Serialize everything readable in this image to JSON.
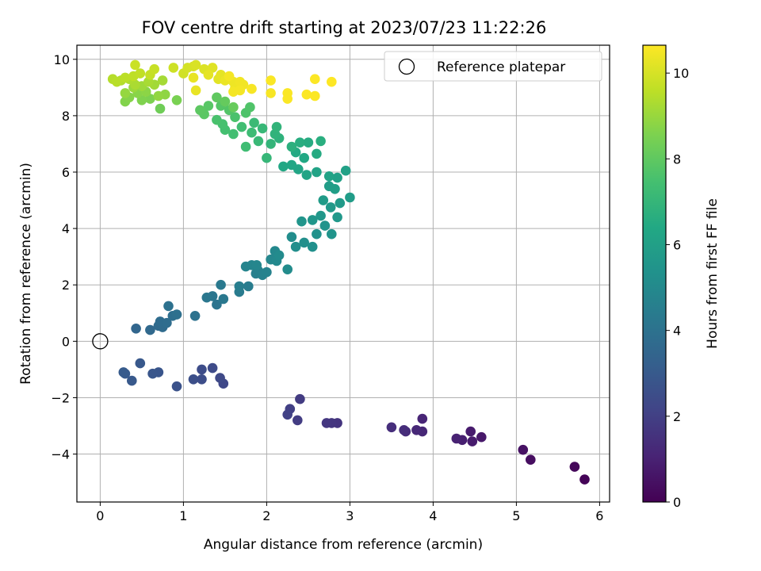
{
  "chart_data": {
    "type": "scatter",
    "title": "FOV centre drift starting at 2023/07/23 11:22:26",
    "xlabel": "Angular distance from reference (arcmin)",
    "ylabel": "Rotation from reference (arcmin)",
    "xlim": [
      -0.28,
      6.12
    ],
    "ylim": [
      -5.7,
      10.5
    ],
    "xticks": [
      0,
      1,
      2,
      3,
      4,
      5,
      6
    ],
    "yticks": [
      -4,
      -2,
      0,
      2,
      4,
      6,
      8,
      10
    ],
    "grid": true,
    "legend": {
      "placement": "top-right",
      "entries": [
        "Reference platepar"
      ]
    },
    "reference_point": {
      "x": 0,
      "y": 0,
      "label": "Reference platepar"
    },
    "colorbar": {
      "label": "Hours from first FF file",
      "colormap": "viridis",
      "range": [
        0,
        10.65
      ],
      "ticks": [
        0,
        2,
        4,
        6,
        8,
        10
      ]
    },
    "series": [
      {
        "color_value": "Hours from first FF file",
        "points": [
          [
            5.82,
            -4.9,
            0.1
          ],
          [
            5.7,
            -4.45,
            0.2
          ],
          [
            5.17,
            -4.2,
            0.4
          ],
          [
            5.08,
            -3.85,
            0.5
          ],
          [
            4.58,
            -3.4,
            0.7
          ],
          [
            4.47,
            -3.55,
            0.8
          ],
          [
            4.45,
            -3.2,
            0.8
          ],
          [
            4.35,
            -3.5,
            0.9
          ],
          [
            4.28,
            -3.45,
            1.0
          ],
          [
            3.87,
            -2.75,
            1.1
          ],
          [
            3.87,
            -3.2,
            1.15
          ],
          [
            3.8,
            -3.15,
            1.2
          ],
          [
            3.67,
            -3.2,
            1.3
          ],
          [
            3.65,
            -3.15,
            1.35
          ],
          [
            3.5,
            -3.05,
            1.4
          ],
          [
            2.85,
            -2.9,
            1.6
          ],
          [
            2.78,
            -2.9,
            1.65
          ],
          [
            2.72,
            -2.9,
            1.7
          ],
          [
            2.4,
            -2.05,
            1.85
          ],
          [
            2.37,
            -2.8,
            1.9
          ],
          [
            2.28,
            -2.4,
            2.0
          ],
          [
            2.25,
            -2.6,
            2.05
          ],
          [
            1.48,
            -1.5,
            2.3
          ],
          [
            1.44,
            -1.3,
            2.35
          ],
          [
            1.35,
            -0.95,
            2.4
          ],
          [
            1.22,
            -1.0,
            2.45
          ],
          [
            1.22,
            -1.35,
            2.5
          ],
          [
            1.12,
            -1.35,
            2.55
          ],
          [
            0.92,
            -1.6,
            2.7
          ],
          [
            0.7,
            -1.1,
            2.8
          ],
          [
            0.63,
            -1.15,
            2.85
          ],
          [
            0.48,
            -0.78,
            2.9
          ],
          [
            0.38,
            -1.4,
            2.95
          ],
          [
            0.3,
            -1.15,
            3.0
          ],
          [
            0.28,
            -1.1,
            3.05
          ],
          [
            0.43,
            0.45,
            3.5
          ],
          [
            0.6,
            0.4,
            3.6
          ],
          [
            0.7,
            0.55,
            3.65
          ],
          [
            0.75,
            0.5,
            3.7
          ],
          [
            0.72,
            0.7,
            3.75
          ],
          [
            0.8,
            0.65,
            3.8
          ],
          [
            0.87,
            0.9,
            3.85
          ],
          [
            0.92,
            0.95,
            3.9
          ],
          [
            0.82,
            1.25,
            3.95
          ],
          [
            1.14,
            0.9,
            4.0
          ],
          [
            1.4,
            1.3,
            4.1
          ],
          [
            1.35,
            1.6,
            4.15
          ],
          [
            1.28,
            1.55,
            4.2
          ],
          [
            1.48,
            1.5,
            4.25
          ],
          [
            1.45,
            2.0,
            4.3
          ],
          [
            1.67,
            1.75,
            4.4
          ],
          [
            1.78,
            1.95,
            4.45
          ],
          [
            1.67,
            1.95,
            4.5
          ],
          [
            1.87,
            2.4,
            4.55
          ],
          [
            1.9,
            2.5,
            4.6
          ],
          [
            1.95,
            2.35,
            4.65
          ],
          [
            2.0,
            2.45,
            4.7
          ],
          [
            1.75,
            2.65,
            4.75
          ],
          [
            1.82,
            2.7,
            4.8
          ],
          [
            1.88,
            2.7,
            4.85
          ],
          [
            2.05,
            2.9,
            4.9
          ],
          [
            2.1,
            3.2,
            4.95
          ],
          [
            2.12,
            2.85,
            5.0
          ],
          [
            2.15,
            3.05,
            5.05
          ],
          [
            2.25,
            2.55,
            5.1
          ],
          [
            2.3,
            3.7,
            5.15
          ],
          [
            2.35,
            3.35,
            5.2
          ],
          [
            2.45,
            3.5,
            5.25
          ],
          [
            2.55,
            3.35,
            5.3
          ],
          [
            2.6,
            3.8,
            5.35
          ],
          [
            2.7,
            4.1,
            5.4
          ],
          [
            2.78,
            3.8,
            5.45
          ],
          [
            2.42,
            4.25,
            5.5
          ],
          [
            2.55,
            4.3,
            5.55
          ],
          [
            2.65,
            4.45,
            5.6
          ],
          [
            2.85,
            4.4,
            5.65
          ],
          [
            2.77,
            4.75,
            5.7
          ],
          [
            2.88,
            4.9,
            5.75
          ],
          [
            2.68,
            5.0,
            5.8
          ],
          [
            3.0,
            5.1,
            5.85
          ],
          [
            2.75,
            5.5,
            5.9
          ],
          [
            2.82,
            5.4,
            5.95
          ],
          [
            2.85,
            5.8,
            6.0
          ],
          [
            2.95,
            6.05,
            6.05
          ],
          [
            2.75,
            5.85,
            6.1
          ],
          [
            2.6,
            6.0,
            6.15
          ],
          [
            2.48,
            5.9,
            6.2
          ],
          [
            2.38,
            6.1,
            6.25
          ],
          [
            2.3,
            6.25,
            6.3
          ],
          [
            2.2,
            6.2,
            6.35
          ],
          [
            2.45,
            6.5,
            6.4
          ],
          [
            2.35,
            6.7,
            6.45
          ],
          [
            2.6,
            6.65,
            6.5
          ],
          [
            2.5,
            7.05,
            6.55
          ],
          [
            2.4,
            7.05,
            6.6
          ],
          [
            2.65,
            7.1,
            6.65
          ],
          [
            2.3,
            6.9,
            6.7
          ],
          [
            2.15,
            7.2,
            6.8
          ],
          [
            2.1,
            7.35,
            6.85
          ],
          [
            2.12,
            7.6,
            6.9
          ],
          [
            2.05,
            7.0,
            6.95
          ],
          [
            2.0,
            6.5,
            7.05
          ],
          [
            1.95,
            7.55,
            7.1
          ],
          [
            1.9,
            7.1,
            7.15
          ],
          [
            1.85,
            7.75,
            7.2
          ],
          [
            1.82,
            7.4,
            7.25
          ],
          [
            1.75,
            6.9,
            7.3
          ],
          [
            1.7,
            7.6,
            7.35
          ],
          [
            1.6,
            7.35,
            7.4
          ],
          [
            1.5,
            7.5,
            7.45
          ],
          [
            1.47,
            7.7,
            7.5
          ],
          [
            1.4,
            7.85,
            7.55
          ],
          [
            1.62,
            7.95,
            7.6
          ],
          [
            1.75,
            8.1,
            7.65
          ],
          [
            1.8,
            8.3,
            7.7
          ],
          [
            1.55,
            8.2,
            7.75
          ],
          [
            1.45,
            8.35,
            7.8
          ],
          [
            1.3,
            8.35,
            7.85
          ],
          [
            1.25,
            8.05,
            7.9
          ],
          [
            1.2,
            8.2,
            7.95
          ],
          [
            1.4,
            8.65,
            8.0
          ],
          [
            1.5,
            8.5,
            8.1
          ],
          [
            1.6,
            8.3,
            8.15
          ],
          [
            0.72,
            8.25,
            8.3
          ],
          [
            0.92,
            8.55,
            8.5
          ],
          [
            0.6,
            8.6,
            8.55
          ],
          [
            0.5,
            8.55,
            8.6
          ],
          [
            0.3,
            8.5,
            8.65
          ],
          [
            0.35,
            8.65,
            8.7
          ],
          [
            0.45,
            8.8,
            8.75
          ],
          [
            0.55,
            8.85,
            8.8
          ],
          [
            0.78,
            8.75,
            8.85
          ],
          [
            0.7,
            8.7,
            8.9
          ],
          [
            0.3,
            8.8,
            8.95
          ],
          [
            0.4,
            9.0,
            9.05
          ],
          [
            0.5,
            9.05,
            9.1
          ],
          [
            0.65,
            9.1,
            9.15
          ],
          [
            0.75,
            9.25,
            9.2
          ],
          [
            0.58,
            9.2,
            9.25
          ],
          [
            0.42,
            9.1,
            9.3
          ],
          [
            0.35,
            9.3,
            9.35
          ],
          [
            0.25,
            9.25,
            9.4
          ],
          [
            0.15,
            9.3,
            9.45
          ],
          [
            0.2,
            9.2,
            9.5
          ],
          [
            0.3,
            9.35,
            9.55
          ],
          [
            0.4,
            9.4,
            9.6
          ],
          [
            0.48,
            9.5,
            9.65
          ],
          [
            0.6,
            9.45,
            9.7
          ],
          [
            0.65,
            9.65,
            9.75
          ],
          [
            0.42,
            9.8,
            9.8
          ],
          [
            0.88,
            9.7,
            9.85
          ],
          [
            1.0,
            9.5,
            9.9
          ],
          [
            1.05,
            9.7,
            9.95
          ],
          [
            1.12,
            9.75,
            10.0
          ],
          [
            1.15,
            9.8,
            10.05
          ],
          [
            1.25,
            9.65,
            10.1
          ],
          [
            1.35,
            9.7,
            10.15
          ],
          [
            1.42,
            9.3,
            10.2
          ],
          [
            1.45,
            9.45,
            10.25
          ],
          [
            1.3,
            9.45,
            10.25
          ],
          [
            1.12,
            9.35,
            10.3
          ],
          [
            1.15,
            8.9,
            10.3
          ],
          [
            1.5,
            9.25,
            10.35
          ],
          [
            1.55,
            9.35,
            10.35
          ],
          [
            1.6,
            9.2,
            10.4
          ],
          [
            1.62,
            9.0,
            10.4
          ],
          [
            1.68,
            9.2,
            10.45
          ],
          [
            1.72,
            9.1,
            10.45
          ],
          [
            1.6,
            8.85,
            10.5
          ],
          [
            1.68,
            8.9,
            10.5
          ],
          [
            1.55,
            9.4,
            10.5
          ],
          [
            1.82,
            8.95,
            10.55
          ],
          [
            2.05,
            8.8,
            10.55
          ],
          [
            2.25,
            8.8,
            10.6
          ],
          [
            2.25,
            8.6,
            10.6
          ],
          [
            2.05,
            9.25,
            10.6
          ],
          [
            2.48,
            8.75,
            10.62
          ],
          [
            2.58,
            8.7,
            10.62
          ],
          [
            2.58,
            9.3,
            10.64
          ],
          [
            2.78,
            9.2,
            10.65
          ]
        ]
      }
    ]
  }
}
